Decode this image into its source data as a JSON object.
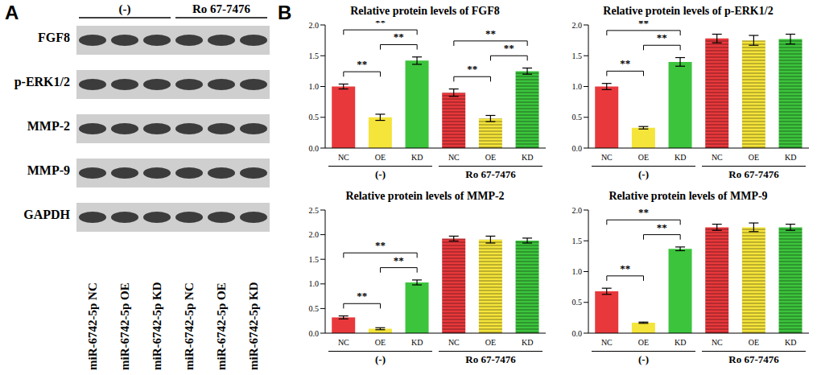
{
  "panel_labels": [
    "A",
    "B"
  ],
  "blot": {
    "groups": [
      "(-)",
      "Ro 67-7476"
    ],
    "proteins": [
      "FGF8",
      "p-ERK1/2",
      "MMP-2",
      "MMP-9",
      "GAPDH"
    ],
    "lanes": [
      "miR-6742-5p NC",
      "miR-6742-5p OE",
      "miR-6742-5p KD",
      "miR-6742-5p NC",
      "miR-6742-5p OE",
      "miR-6742-5p KD"
    ]
  },
  "chart_data": [
    {
      "type": "bar",
      "title": "Relative protein levels of FGF8",
      "categories": [
        "NC",
        "OE",
        "KD",
        "NC",
        "OE",
        "KD"
      ],
      "group_labels": [
        "(-)",
        "Ro 67-7476"
      ],
      "values": [
        1.0,
        0.5,
        1.42,
        0.9,
        0.48,
        1.25
      ],
      "errors": [
        0.04,
        0.05,
        0.06,
        0.06,
        0.05,
        0.05
      ],
      "colors": [
        "#e8383b",
        "#f5e43a",
        "#3cc43c",
        "#e8383b",
        "#f5e43a",
        "#3cc43c"
      ],
      "ylim": [
        0,
        2.0
      ],
      "yticks": [
        {
          "value": 0,
          "label": "0.0"
        },
        {
          "value": 0.5,
          "label": "0.5"
        },
        {
          "value": 1.0,
          "label": "1.0"
        },
        {
          "value": 1.5,
          "label": "1.5"
        },
        {
          "value": 2.0,
          "label": "2.0"
        }
      ],
      "annotations": [
        {
          "from": 0,
          "to": 1,
          "text": "**"
        },
        {
          "from": 1,
          "to": 2,
          "text": "**"
        },
        {
          "from": 0,
          "to": 2,
          "text": "**"
        },
        {
          "from": 3,
          "to": 4,
          "text": "**"
        },
        {
          "from": 4,
          "to": 5,
          "text": "**"
        },
        {
          "from": 3,
          "to": 5,
          "text": "**"
        }
      ]
    },
    {
      "type": "bar",
      "title": "Relative protein levels of p-ERK1/2",
      "categories": [
        "NC",
        "OE",
        "KD",
        "NC",
        "OE",
        "KD"
      ],
      "group_labels": [
        "(-)",
        "Ro 67-7476"
      ],
      "values": [
        1.0,
        0.33,
        1.4,
        1.78,
        1.75,
        1.77
      ],
      "errors": [
        0.05,
        0.02,
        0.07,
        0.07,
        0.08,
        0.08
      ],
      "colors": [
        "#e8383b",
        "#f5e43a",
        "#3cc43c",
        "#e8383b",
        "#f5e43a",
        "#3cc43c"
      ],
      "ylim": [
        0,
        2.0
      ],
      "yticks": [
        {
          "value": 0,
          "label": "0.0"
        },
        {
          "value": 0.5,
          "label": "0.5"
        },
        {
          "value": 1.0,
          "label": "1.0"
        },
        {
          "value": 1.5,
          "label": "1.5"
        },
        {
          "value": 2.0,
          "label": "2.0"
        }
      ],
      "annotations": [
        {
          "from": 0,
          "to": 1,
          "text": "**"
        },
        {
          "from": 1,
          "to": 2,
          "text": "**"
        },
        {
          "from": 0,
          "to": 2,
          "text": "**"
        }
      ]
    },
    {
      "type": "bar",
      "title": "Relative protein levels of MMP-2",
      "categories": [
        "NC",
        "OE",
        "KD",
        "NC",
        "OE",
        "KD"
      ],
      "group_labels": [
        "(-)",
        "Ro 67-7476"
      ],
      "values": [
        0.32,
        0.09,
        1.03,
        1.92,
        1.9,
        1.88
      ],
      "errors": [
        0.03,
        0.02,
        0.05,
        0.05,
        0.07,
        0.05
      ],
      "colors": [
        "#e8383b",
        "#f5e43a",
        "#3cc43c",
        "#e8383b",
        "#f5e43a",
        "#3cc43c"
      ],
      "ylim": [
        0,
        2.5
      ],
      "yticks": [
        {
          "value": 0,
          "label": "0.0"
        },
        {
          "value": 0.5,
          "label": "0.5"
        },
        {
          "value": 1.0,
          "label": "1.0"
        },
        {
          "value": 1.5,
          "label": "1.5"
        },
        {
          "value": 2.0,
          "label": "2.0"
        },
        {
          "value": 2.5,
          "label": "2.5"
        }
      ],
      "annotations": [
        {
          "from": 0,
          "to": 1,
          "text": "**"
        },
        {
          "from": 1,
          "to": 2,
          "text": "**"
        },
        {
          "from": 0,
          "to": 2,
          "text": "**"
        }
      ]
    },
    {
      "type": "bar",
      "title": "Relative protein levels of MMP-9",
      "categories": [
        "NC",
        "OE",
        "KD",
        "NC",
        "OE",
        "KD"
      ],
      "group_labels": [
        "(-)",
        "Ro 67-7476"
      ],
      "values": [
        0.68,
        0.17,
        1.37,
        1.72,
        1.72,
        1.72
      ],
      "errors": [
        0.05,
        0.01,
        0.03,
        0.05,
        0.07,
        0.05
      ],
      "colors": [
        "#e8383b",
        "#f5e43a",
        "#3cc43c",
        "#e8383b",
        "#f5e43a",
        "#3cc43c"
      ],
      "ylim": [
        0,
        2.0
      ],
      "yticks": [
        {
          "value": 0,
          "label": "0.0"
        },
        {
          "value": 0.5,
          "label": "0.5"
        },
        {
          "value": 1.0,
          "label": "1.0"
        },
        {
          "value": 1.5,
          "label": "1.5"
        },
        {
          "value": 2.0,
          "label": "2.0"
        }
      ],
      "annotations": [
        {
          "from": 0,
          "to": 1,
          "text": "**"
        },
        {
          "from": 1,
          "to": 2,
          "text": "**"
        },
        {
          "from": 0,
          "to": 2,
          "text": "**"
        }
      ]
    }
  ]
}
